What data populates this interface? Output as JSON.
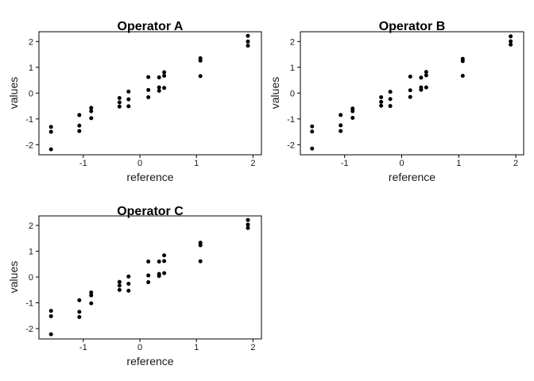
{
  "figure": {
    "background": "#ffffff",
    "point_color": "#000000",
    "frame_color": "#000000"
  },
  "chart_data": [
    {
      "type": "scatter",
      "title": "Operator A",
      "xlabel": "reference",
      "ylabel": "values",
      "xticks": [
        -1,
        0,
        1,
        2
      ],
      "yticks": [
        -2,
        -1,
        0,
        1,
        2
      ],
      "xlim": [
        -1.78,
        2.14
      ],
      "ylim": [
        -2.39,
        2.38
      ],
      "grid": false,
      "groups": [
        {
          "reference": -1.57,
          "values": [
            -1.31,
            -1.5,
            -2.18
          ]
        },
        {
          "reference": -1.07,
          "values": [
            -0.85,
            -1.26,
            -1.47
          ]
        },
        {
          "reference": -0.86,
          "values": [
            -0.57,
            -0.7,
            -0.97
          ]
        },
        {
          "reference": -0.36,
          "values": [
            -0.19,
            -0.36,
            -0.52
          ]
        },
        {
          "reference": -0.2,
          "values": [
            0.06,
            -0.24,
            -0.51
          ]
        },
        {
          "reference": 0.15,
          "values": [
            0.62,
            0.12,
            -0.16
          ]
        },
        {
          "reference": 0.34,
          "values": [
            0.61,
            0.22,
            0.09
          ]
        },
        {
          "reference": 0.43,
          "values": [
            0.81,
            0.67,
            0.2
          ]
        },
        {
          "reference": 1.07,
          "values": [
            1.35,
            1.26,
            0.66
          ]
        },
        {
          "reference": 1.91,
          "values": [
            2.22,
            2.0,
            1.84
          ]
        }
      ]
    },
    {
      "type": "scatter",
      "title": "Operator B",
      "xlabel": "reference",
      "ylabel": "values",
      "xticks": [
        -1,
        0,
        1,
        2
      ],
      "yticks": [
        -2,
        -1,
        0,
        1,
        2
      ],
      "xlim": [
        -1.78,
        2.14
      ],
      "ylim": [
        -2.39,
        2.38
      ],
      "grid": false,
      "groups": [
        {
          "reference": -1.57,
          "values": [
            -1.29,
            -1.49,
            -2.15
          ]
        },
        {
          "reference": -1.07,
          "values": [
            -0.85,
            -1.25,
            -1.47
          ]
        },
        {
          "reference": -0.86,
          "values": [
            -0.6,
            -0.7,
            -0.96
          ]
        },
        {
          "reference": -0.36,
          "values": [
            -0.16,
            -0.34,
            -0.49
          ]
        },
        {
          "reference": -0.2,
          "values": [
            0.05,
            -0.23,
            -0.5
          ]
        },
        {
          "reference": 0.15,
          "values": [
            0.64,
            0.11,
            -0.15
          ]
        },
        {
          "reference": 0.34,
          "values": [
            0.6,
            0.22,
            0.13
          ]
        },
        {
          "reference": 0.43,
          "values": [
            0.82,
            0.69,
            0.22
          ]
        },
        {
          "reference": 1.07,
          "values": [
            1.33,
            1.24,
            0.67
          ]
        },
        {
          "reference": 1.91,
          "values": [
            2.2,
            2.01,
            1.88
          ]
        }
      ]
    },
    {
      "type": "scatter",
      "title": "Operator C",
      "xlabel": "reference",
      "ylabel": "values",
      "xticks": [
        -1,
        0,
        1,
        2
      ],
      "yticks": [
        -2,
        -1,
        0,
        1,
        2
      ],
      "xlim": [
        -1.78,
        2.14
      ],
      "ylim": [
        -2.39,
        2.38
      ],
      "grid": false,
      "groups": [
        {
          "reference": -1.57,
          "values": [
            -1.31,
            -1.52,
            -2.22
          ]
        },
        {
          "reference": -1.07,
          "values": [
            -0.9,
            -1.35,
            -1.55
          ]
        },
        {
          "reference": -0.86,
          "values": [
            -0.6,
            -0.71,
            -1.02
          ]
        },
        {
          "reference": -0.36,
          "values": [
            -0.19,
            -0.33,
            -0.5
          ]
        },
        {
          "reference": -0.2,
          "values": [
            0.02,
            -0.26,
            -0.53
          ]
        },
        {
          "reference": 0.15,
          "values": [
            0.6,
            0.06,
            -0.2
          ]
        },
        {
          "reference": 0.34,
          "values": [
            0.6,
            0.12,
            0.04
          ]
        },
        {
          "reference": 0.43,
          "values": [
            0.84,
            0.62,
            0.15
          ]
        },
        {
          "reference": 1.07,
          "values": [
            1.33,
            1.23,
            0.61
          ]
        },
        {
          "reference": 1.91,
          "values": [
            2.21,
            2.03,
            1.9
          ]
        }
      ]
    }
  ]
}
